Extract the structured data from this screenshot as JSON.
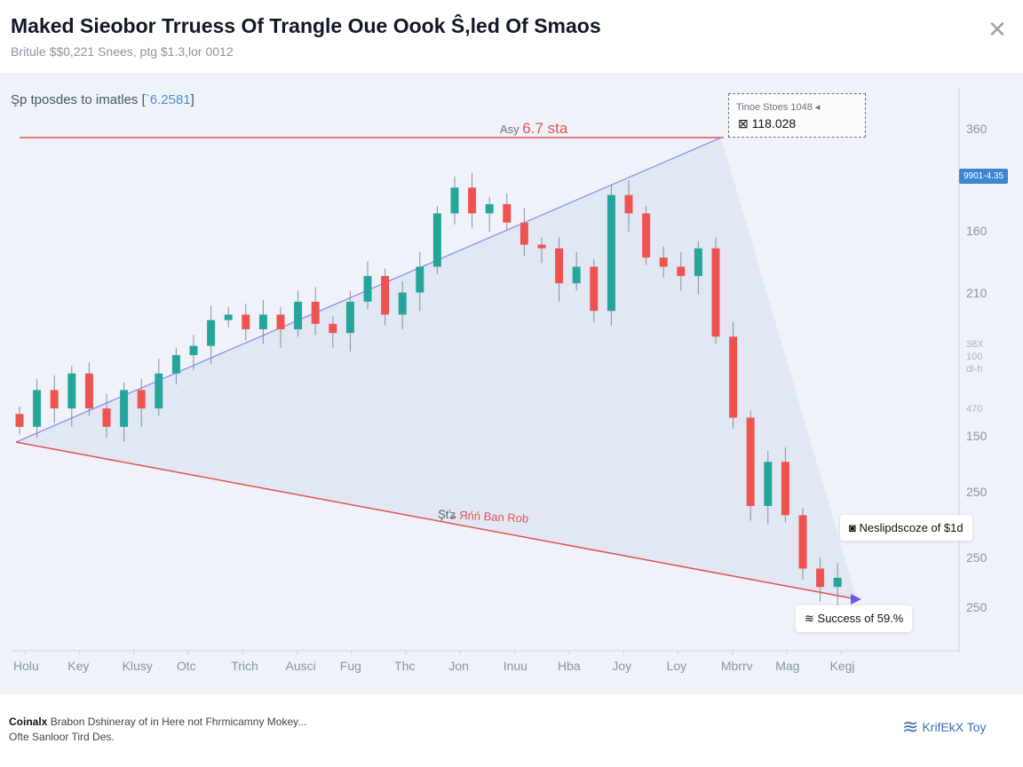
{
  "header": {
    "title": "Maked Sieobor Trruess Of Trangle Oue Oook Ŝ,led Of Smaos",
    "subtitle": "Britule $$0,221 Snees, ptg $1.3,lor 0012",
    "close_icon": "close-icon"
  },
  "chart_caption": {
    "text": "Şp tposdes to imatles [",
    "value": "`6.2581",
    "suffix": "]"
  },
  "annotations": {
    "resistance_prefix": "Asy",
    "resistance_value": "6.7 sta",
    "support_prefix": "Şťʑ",
    "support_label": "Яńń Ban Rob",
    "tooltip_title": "Tinoe Stoes 1048 ◂",
    "tooltip_value": "118.028",
    "price_tag": "9901-4.35",
    "callout_1": "Neslipdscoze of $1d",
    "callout_2": "Success of 59.%"
  },
  "footer": {
    "brand_bold": "Coinalx",
    "line1": "Brabon Dshineray of in Here not Fhrmicamny Mokey...",
    "line2": "Ofte Sanloor Tird Des.",
    "logo_text": "KrifEkX Toy"
  },
  "colors": {
    "up": "#26a69a",
    "down": "#ef5350",
    "trend_upper": "#8f8fe6",
    "trend_lower": "#e05252",
    "accent": "#3d86d4"
  },
  "chart_data": {
    "type": "candlestick",
    "title": "",
    "y_tick_labels": [
      "360",
      "160",
      "210",
      "38X 100 dl-h",
      "470",
      "150",
      "250",
      "250",
      "250"
    ],
    "x_tick_labels": [
      "Holu",
      "Key",
      "Klusy",
      "Otc",
      "Trich",
      "Ausci",
      "Fug",
      "Thc",
      "Jon",
      "Inuu",
      "Hba",
      "Joy",
      "Loy",
      "Mbrrv",
      "Mag",
      "Kegj"
    ],
    "ylim": [
      100,
      360
    ],
    "grid": false,
    "pattern": "triangle",
    "closes": [
      198,
      218,
      208,
      227,
      208,
      198,
      218,
      208,
      227,
      237,
      242,
      256,
      259,
      251,
      259,
      251,
      266,
      254,
      249,
      266,
      280,
      259,
      271,
      285,
      314,
      328,
      314,
      319,
      309,
      297,
      295,
      276,
      285,
      261,
      324,
      314,
      290,
      285,
      280,
      295,
      247,
      203,
      155,
      179,
      150,
      121,
      111,
      116
    ],
    "first_open": 205
  }
}
